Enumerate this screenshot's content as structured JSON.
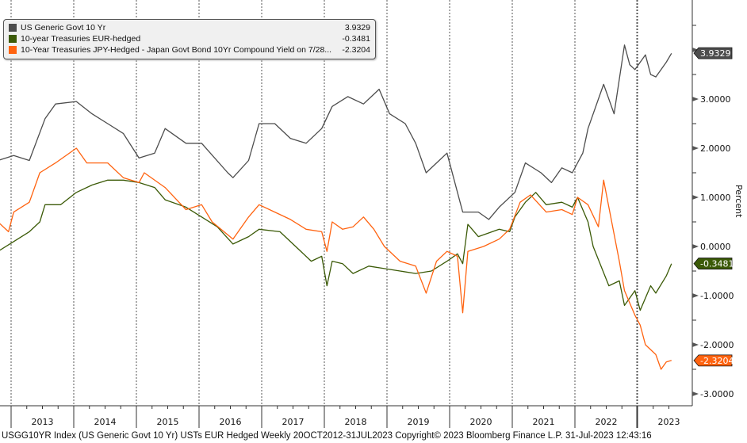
{
  "legend": {
    "items": [
      {
        "label": "US Generic Govt 10 Yr",
        "value": "3.9329",
        "color": "#4d4d4d"
      },
      {
        "label": "10-year Treasuries EUR-hedged",
        "value": "-0.3481",
        "color": "#3b5a07"
      },
      {
        "label": "10-Year Treasuries JPY-Hedged - Japan Govt Bond 10Yr Compound Yield on 7/28...",
        "value": "-2.3204",
        "color": "#ff6310"
      }
    ]
  },
  "footer": "USGG10YR Index (US Generic Govt 10 Yr) USTs EUR Hedged  Weekly 20OCT2012-31JUL2023  Copyright© 2023 Bloomberg Finance L.P.  31-Jul-2023 12:43:16",
  "chart_data": {
    "type": "line",
    "ylabel": "Percent",
    "ylim": [
      -3.25,
      5.0
    ],
    "xlim": [
      "2012-10",
      "2023-08"
    ],
    "grid": "vertical dashed at year boundaries",
    "y_ticks": [
      "3.0000",
      "2.0000",
      "1.0000",
      "0.0000",
      "-1.0000",
      "-2.0000",
      "-3.0000"
    ],
    "x_tick_labels": [
      "2013",
      "2014",
      "2015",
      "2016",
      "2017",
      "2018",
      "2019",
      "2020",
      "2021",
      "2022",
      "2023"
    ],
    "legend_position": "top-left",
    "series": [
      {
        "name": "US Generic Govt 10 Yr",
        "last": "3.9329",
        "color": "#4d4d4d",
        "points": [
          [
            "2012-10",
            1.75
          ],
          [
            "2013-01",
            1.85
          ],
          [
            "2013-04",
            1.75
          ],
          [
            "2013-07",
            2.6
          ],
          [
            "2013-09",
            2.9
          ],
          [
            "2014-01",
            2.95
          ],
          [
            "2014-04",
            2.7
          ],
          [
            "2014-07",
            2.5
          ],
          [
            "2014-10",
            2.3
          ],
          [
            "2015-01",
            1.8
          ],
          [
            "2015-04",
            1.9
          ],
          [
            "2015-06",
            2.4
          ],
          [
            "2015-10",
            2.1
          ],
          [
            "2016-01",
            2.1
          ],
          [
            "2016-06",
            1.5
          ],
          [
            "2016-07",
            1.4
          ],
          [
            "2016-10",
            1.75
          ],
          [
            "2016-12",
            2.5
          ],
          [
            "2017-03",
            2.5
          ],
          [
            "2017-06",
            2.2
          ],
          [
            "2017-09",
            2.1
          ],
          [
            "2017-12",
            2.4
          ],
          [
            "2018-02",
            2.85
          ],
          [
            "2018-05",
            3.05
          ],
          [
            "2018-08",
            2.9
          ],
          [
            "2018-11",
            3.2
          ],
          [
            "2019-01",
            2.7
          ],
          [
            "2019-04",
            2.5
          ],
          [
            "2019-06",
            2.1
          ],
          [
            "2019-08",
            1.5
          ],
          [
            "2019-10",
            1.7
          ],
          [
            "2019-12",
            1.9
          ],
          [
            "2020-03",
            0.7
          ],
          [
            "2020-06",
            0.7
          ],
          [
            "2020-08",
            0.55
          ],
          [
            "2020-10",
            0.8
          ],
          [
            "2021-01",
            1.1
          ],
          [
            "2021-03",
            1.7
          ],
          [
            "2021-06",
            1.5
          ],
          [
            "2021-08",
            1.3
          ],
          [
            "2021-10",
            1.6
          ],
          [
            "2021-12",
            1.5
          ],
          [
            "2022-02",
            1.9
          ],
          [
            "2022-03",
            2.4
          ],
          [
            "2022-05",
            3.0
          ],
          [
            "2022-06",
            3.3
          ],
          [
            "2022-08",
            2.7
          ],
          [
            "2022-10",
            4.1
          ],
          [
            "2022-11",
            3.7
          ],
          [
            "2022-12",
            3.6
          ],
          [
            "2023-02",
            3.9
          ],
          [
            "2023-03",
            3.5
          ],
          [
            "2023-04",
            3.45
          ],
          [
            "2023-06",
            3.75
          ],
          [
            "2023-07",
            3.93
          ]
        ]
      },
      {
        "name": "10-year Treasuries EUR-hedged",
        "last": "-0.3481",
        "color": "#3b5a07",
        "points": [
          [
            "2012-10",
            -0.1
          ],
          [
            "2013-01",
            0.1
          ],
          [
            "2013-04",
            0.3
          ],
          [
            "2013-06",
            0.5
          ],
          [
            "2013-07",
            0.85
          ],
          [
            "2013-10",
            0.85
          ],
          [
            "2014-01",
            1.1
          ],
          [
            "2014-04",
            1.25
          ],
          [
            "2014-07",
            1.35
          ],
          [
            "2014-10",
            1.35
          ],
          [
            "2015-01",
            1.3
          ],
          [
            "2015-04",
            1.2
          ],
          [
            "2015-06",
            0.95
          ],
          [
            "2015-10",
            0.8
          ],
          [
            "2016-01",
            0.6
          ],
          [
            "2016-04",
            0.4
          ],
          [
            "2016-07",
            0.05
          ],
          [
            "2016-10",
            0.2
          ],
          [
            "2016-12",
            0.35
          ],
          [
            "2017-04",
            0.3
          ],
          [
            "2017-07",
            0.0
          ],
          [
            "2017-10",
            -0.3
          ],
          [
            "2017-12",
            -0.2
          ],
          [
            "2018-01",
            -0.8
          ],
          [
            "2018-02",
            -0.3
          ],
          [
            "2018-04",
            -0.35
          ],
          [
            "2018-06",
            -0.55
          ],
          [
            "2018-09",
            -0.4
          ],
          [
            "2018-12",
            -0.45
          ],
          [
            "2019-03",
            -0.5
          ],
          [
            "2019-06",
            -0.55
          ],
          [
            "2019-09",
            -0.5
          ],
          [
            "2019-12",
            -0.3
          ],
          [
            "2020-02",
            -0.15
          ],
          [
            "2020-03",
            -0.35
          ],
          [
            "2020-04",
            0.45
          ],
          [
            "2020-06",
            0.2
          ],
          [
            "2020-10",
            0.35
          ],
          [
            "2020-12",
            0.3
          ],
          [
            "2021-01",
            0.6
          ],
          [
            "2021-03",
            0.9
          ],
          [
            "2021-05",
            1.1
          ],
          [
            "2021-07",
            0.85
          ],
          [
            "2021-10",
            0.9
          ],
          [
            "2021-12",
            0.8
          ],
          [
            "2022-01",
            1.0
          ],
          [
            "2022-03",
            0.5
          ],
          [
            "2022-04",
            0.0
          ],
          [
            "2022-07",
            -0.8
          ],
          [
            "2022-09",
            -0.7
          ],
          [
            "2022-10",
            -1.2
          ],
          [
            "2022-12",
            -0.9
          ],
          [
            "2023-01",
            -1.3
          ],
          [
            "2023-03",
            -0.8
          ],
          [
            "2023-04",
            -0.95
          ],
          [
            "2023-06",
            -0.6
          ],
          [
            "2023-07",
            -0.35
          ]
        ]
      },
      {
        "name": "10-Year Treasuries JPY-Hedged - Japan Govt Bond 10Yr Compound Yield on 7/28...",
        "last": "-2.3204",
        "color": "#ff6310",
        "points": [
          [
            "2012-10",
            0.5
          ],
          [
            "2012-12",
            0.3
          ],
          [
            "2013-01",
            0.7
          ],
          [
            "2013-04",
            0.9
          ],
          [
            "2013-06",
            1.5
          ],
          [
            "2013-09",
            1.7
          ],
          [
            "2014-01",
            2.0
          ],
          [
            "2014-03",
            1.7
          ],
          [
            "2014-07",
            1.7
          ],
          [
            "2014-10",
            1.4
          ],
          [
            "2015-01",
            1.3
          ],
          [
            "2015-02",
            1.5
          ],
          [
            "2015-06",
            1.2
          ],
          [
            "2015-10",
            0.75
          ],
          [
            "2016-01",
            0.85
          ],
          [
            "2016-03",
            0.5
          ],
          [
            "2016-07",
            0.15
          ],
          [
            "2016-10",
            0.6
          ],
          [
            "2016-12",
            0.85
          ],
          [
            "2017-03",
            0.7
          ],
          [
            "2017-06",
            0.55
          ],
          [
            "2017-09",
            0.35
          ],
          [
            "2017-12",
            0.3
          ],
          [
            "2018-01",
            -0.1
          ],
          [
            "2018-02",
            0.5
          ],
          [
            "2018-04",
            0.35
          ],
          [
            "2018-06",
            0.4
          ],
          [
            "2018-08",
            0.6
          ],
          [
            "2018-10",
            0.35
          ],
          [
            "2018-12",
            0.0
          ],
          [
            "2019-03",
            -0.3
          ],
          [
            "2019-06",
            -0.4
          ],
          [
            "2019-08",
            -0.95
          ],
          [
            "2019-10",
            -0.3
          ],
          [
            "2019-12",
            -0.1
          ],
          [
            "2020-02",
            -0.2
          ],
          [
            "2020-03",
            -1.35
          ],
          [
            "2020-04",
            -0.1
          ],
          [
            "2020-07",
            0.0
          ],
          [
            "2020-10",
            0.15
          ],
          [
            "2020-12",
            0.35
          ],
          [
            "2021-02",
            0.9
          ],
          [
            "2021-04",
            1.05
          ],
          [
            "2021-07",
            0.7
          ],
          [
            "2021-10",
            0.75
          ],
          [
            "2021-12",
            0.65
          ],
          [
            "2022-01",
            1.0
          ],
          [
            "2022-03",
            0.85
          ],
          [
            "2022-05",
            0.4
          ],
          [
            "2022-06",
            1.35
          ],
          [
            "2022-07",
            0.8
          ],
          [
            "2022-09",
            -0.3
          ],
          [
            "2022-10",
            -0.9
          ],
          [
            "2022-12",
            -1.4
          ],
          [
            "2023-01",
            -1.6
          ],
          [
            "2023-02",
            -2.0
          ],
          [
            "2023-04",
            -2.2
          ],
          [
            "2023-05",
            -2.5
          ],
          [
            "2023-06",
            -2.35
          ],
          [
            "2023-07",
            -2.32
          ]
        ]
      }
    ]
  }
}
